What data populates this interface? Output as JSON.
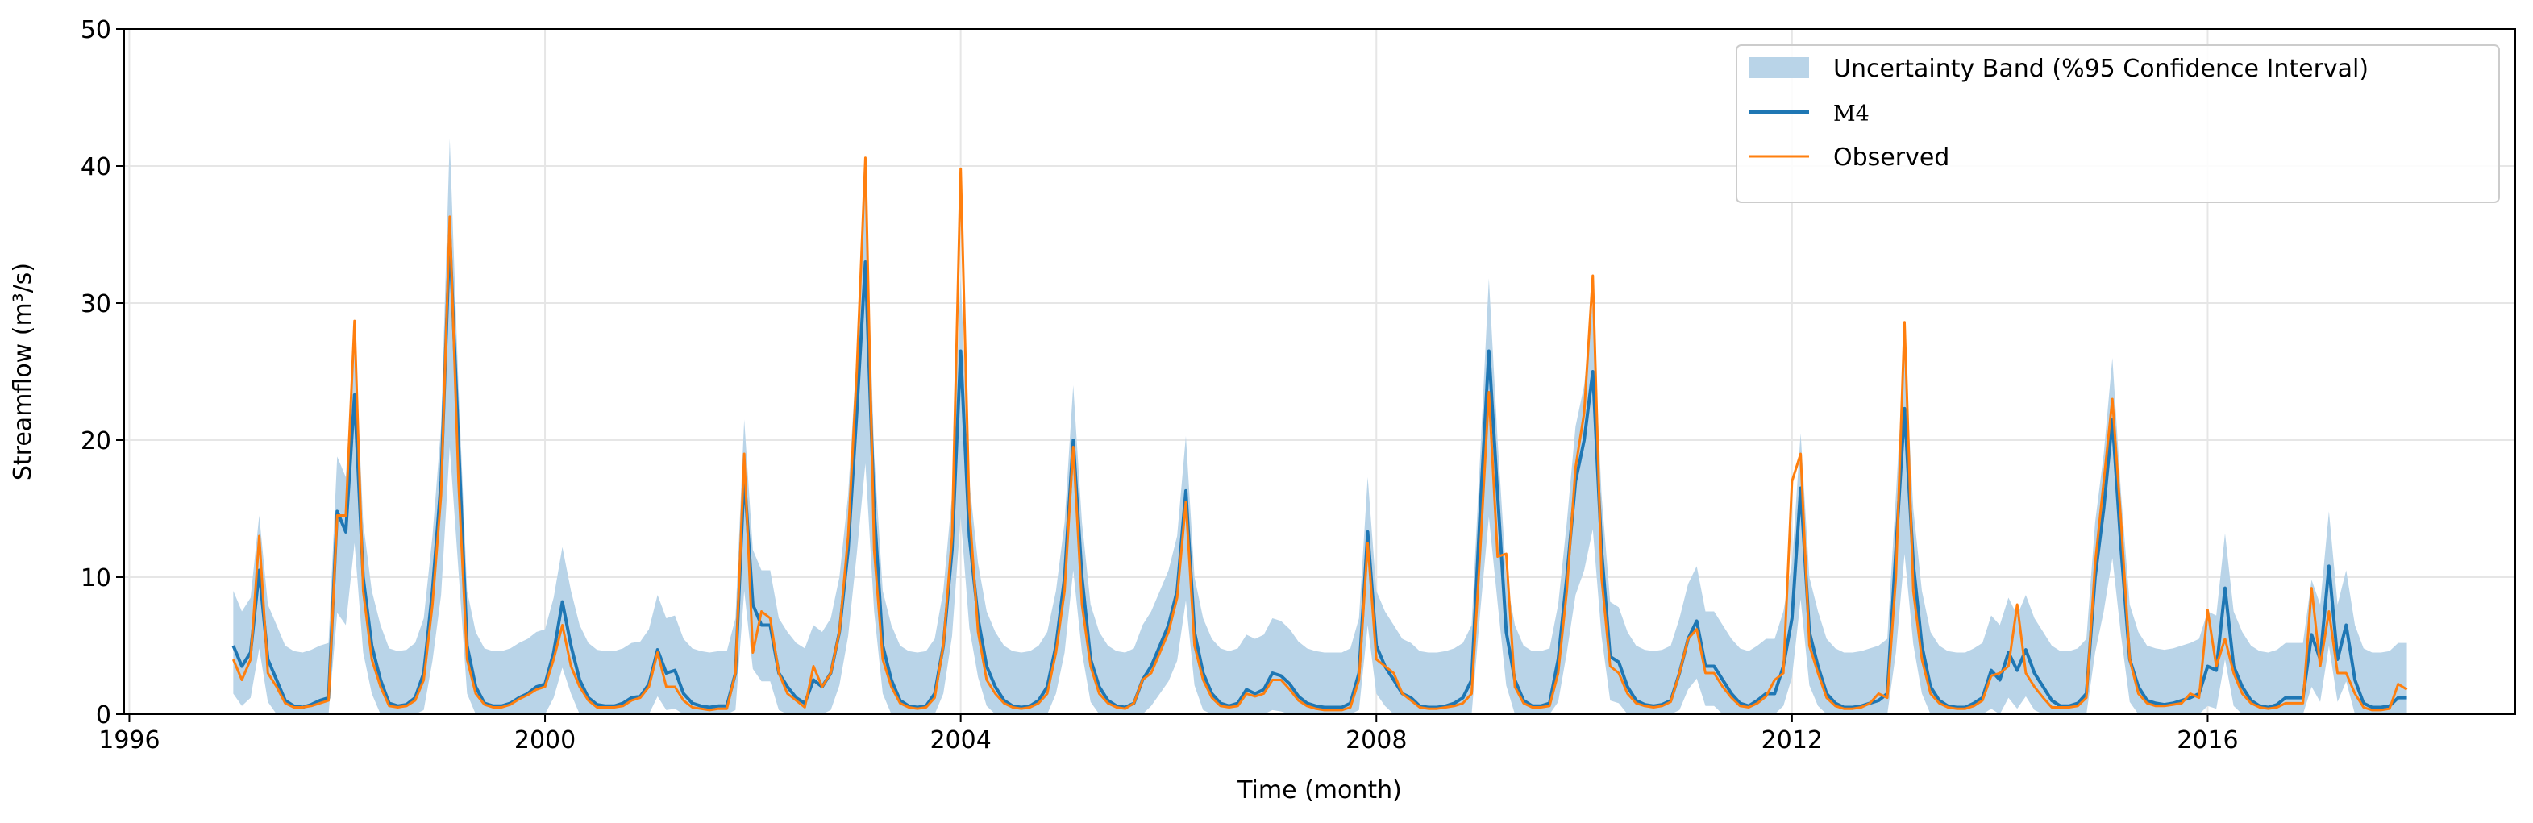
{
  "chart_data": {
    "type": "line",
    "xlabel": "Time (month)",
    "ylabel": "Streamflow (m³/s)",
    "xlim": [
      1995.95,
      2018.96
    ],
    "xticks": [
      1996,
      2000,
      2004,
      2008,
      2012,
      2016
    ],
    "ylim": [
      0,
      50
    ],
    "yticks": [
      0,
      10,
      20,
      30,
      40,
      50
    ],
    "grid": true,
    "legend": "upper right",
    "x": [
      1997,
      1997.083,
      1997.167,
      1997.25,
      1997.333,
      1997.417,
      1997.5,
      1997.583,
      1997.667,
      1997.75,
      1997.833,
      1997.917,
      1998,
      1998.083,
      1998.167,
      1998.25,
      1998.333,
      1998.417,
      1998.5,
      1998.583,
      1998.667,
      1998.75,
      1998.833,
      1998.917,
      1999,
      1999.083,
      1999.167,
      1999.25,
      1999.333,
      1999.417,
      1999.5,
      1999.583,
      1999.667,
      1999.75,
      1999.833,
      1999.917,
      2000,
      2000.083,
      2000.167,
      2000.25,
      2000.333,
      2000.417,
      2000.5,
      2000.583,
      2000.667,
      2000.75,
      2000.833,
      2000.917,
      2001,
      2001.083,
      2001.167,
      2001.25,
      2001.333,
      2001.417,
      2001.5,
      2001.583,
      2001.667,
      2001.75,
      2001.833,
      2001.917,
      2002,
      2002.083,
      2002.167,
      2002.25,
      2002.333,
      2002.417,
      2002.5,
      2002.583,
      2002.667,
      2002.75,
      2002.833,
      2002.917,
      2003,
      2003.083,
      2003.167,
      2003.25,
      2003.333,
      2003.417,
      2003.5,
      2003.583,
      2003.667,
      2003.75,
      2003.833,
      2003.917,
      2004,
      2004.083,
      2004.167,
      2004.25,
      2004.333,
      2004.417,
      2004.5,
      2004.583,
      2004.667,
      2004.75,
      2004.833,
      2004.917,
      2005,
      2005.083,
      2005.167,
      2005.25,
      2005.333,
      2005.417,
      2005.5,
      2005.583,
      2005.667,
      2005.75,
      2005.833,
      2005.917,
      2006,
      2006.083,
      2006.167,
      2006.25,
      2006.333,
      2006.417,
      2006.5,
      2006.583,
      2006.667,
      2006.75,
      2006.833,
      2006.917,
      2007,
      2007.083,
      2007.167,
      2007.25,
      2007.333,
      2007.417,
      2007.5,
      2007.583,
      2007.667,
      2007.75,
      2007.833,
      2007.917,
      2008,
      2008.083,
      2008.167,
      2008.25,
      2008.333,
      2008.417,
      2008.5,
      2008.583,
      2008.667,
      2008.75,
      2008.833,
      2008.917,
      2009,
      2009.083,
      2009.167,
      2009.25,
      2009.333,
      2009.417,
      2009.5,
      2009.583,
      2009.667,
      2009.75,
      2009.833,
      2009.917,
      2010,
      2010.083,
      2010.167,
      2010.25,
      2010.333,
      2010.417,
      2010.5,
      2010.583,
      2010.667,
      2010.75,
      2010.833,
      2010.917,
      2011,
      2011.083,
      2011.167,
      2011.25,
      2011.333,
      2011.417,
      2011.5,
      2011.583,
      2011.667,
      2011.75,
      2011.833,
      2011.917,
      2012,
      2012.083,
      2012.167,
      2012.25,
      2012.333,
      2012.417,
      2012.5,
      2012.583,
      2012.667,
      2012.75,
      2012.833,
      2012.917,
      2013,
      2013.083,
      2013.167,
      2013.25,
      2013.333,
      2013.417,
      2013.5,
      2013.583,
      2013.667,
      2013.75,
      2013.833,
      2013.917,
      2014,
      2014.083,
      2014.167,
      2014.25,
      2014.333,
      2014.417,
      2014.5,
      2014.583,
      2014.667,
      2014.75,
      2014.833,
      2014.917,
      2015,
      2015.083,
      2015.167,
      2015.25,
      2015.333,
      2015.417,
      2015.5,
      2015.583,
      2015.667,
      2015.75,
      2015.833,
      2015.917,
      2016,
      2016.083,
      2016.167,
      2016.25,
      2016.333,
      2016.417,
      2016.5,
      2016.583,
      2016.667,
      2016.75,
      2016.833,
      2016.917,
      2017,
      2017.083,
      2017.167,
      2017.25,
      2017.333,
      2017.417,
      2017.5,
      2017.583,
      2017.667,
      2017.75,
      2017.833,
      2017.917
    ],
    "series": [
      {
        "name": "Uncertainty Band (%95 Confidence Interval)",
        "color": "#b9d4e8",
        "upper": [
          9,
          7.5,
          8.5,
          14.5,
          8,
          6.5,
          5,
          4.6,
          4.5,
          4.7,
          5,
          5.2,
          18.8,
          17.3,
          28,
          14,
          9,
          6.5,
          4.8,
          4.6,
          4.7,
          5.2,
          7,
          13,
          21,
          42,
          24,
          9,
          6,
          4.8,
          4.6,
          4.6,
          4.8,
          5.2,
          5.5,
          6,
          6.2,
          8.5,
          12.2,
          9,
          6.5,
          5.2,
          4.7,
          4.6,
          4.6,
          4.8,
          5.2,
          5.3,
          6.2,
          8.7,
          7,
          7.2,
          5.5,
          4.8,
          4.6,
          4.5,
          4.6,
          4.6,
          7,
          21.5,
          12,
          10.5,
          10.5,
          7,
          6,
          5.2,
          4.8,
          6.5,
          6,
          7,
          10,
          16,
          26.4,
          39.6,
          19,
          9,
          6.5,
          5,
          4.6,
          4.5,
          4.6,
          5.5,
          9,
          16,
          31.8,
          17,
          11,
          7.5,
          6,
          5,
          4.6,
          4.5,
          4.6,
          5,
          6,
          9,
          14,
          24,
          14,
          8,
          6,
          5,
          4.6,
          4.5,
          4.8,
          6.5,
          7.5,
          9,
          10.5,
          13,
          20.3,
          10,
          7,
          5.5,
          4.8,
          4.6,
          4.8,
          5.8,
          5.5,
          5.8,
          7,
          6.8,
          6.2,
          5.3,
          4.8,
          4.6,
          4.5,
          4.5,
          4.5,
          4.8,
          7,
          17.3,
          9,
          7.5,
          6.5,
          5.5,
          5.2,
          4.6,
          4.5,
          4.5,
          4.6,
          4.8,
          5.2,
          6.5,
          19,
          31.8,
          20,
          10,
          6.5,
          5,
          4.6,
          4.6,
          4.8,
          8,
          14,
          21,
          24,
          30,
          16,
          8.2,
          7.8,
          6,
          5,
          4.7,
          4.6,
          4.7,
          5,
          7,
          9.5,
          10.8,
          7.5,
          7.5,
          6.5,
          5.5,
          4.8,
          4.6,
          5,
          5.5,
          5.5,
          7.5,
          11,
          20.5,
          10,
          7.5,
          5.5,
          4.8,
          4.5,
          4.5,
          4.6,
          4.8,
          5,
          5.5,
          16,
          27,
          15,
          9,
          6,
          5,
          4.6,
          4.5,
          4.5,
          4.8,
          5.2,
          7.2,
          6.5,
          8.5,
          7.2,
          8.7,
          7,
          6,
          5,
          4.6,
          4.6,
          4.8,
          5.5,
          14,
          19,
          26,
          16,
          8,
          6,
          5,
          4.8,
          4.7,
          4.8,
          5,
          5.2,
          5.5,
          7.5,
          7.2,
          13.2,
          7.5,
          6,
          5,
          4.6,
          4.5,
          4.7,
          5.2,
          5.2,
          5.2,
          9.8,
          8,
          14.8,
          8,
          10.5,
          6.5,
          4.8,
          4.5,
          4.5,
          4.6,
          5.2,
          5.2
        ],
        "lower": [
          1.5,
          0.6,
          1.2,
          4.8,
          0.9,
          0,
          0,
          0,
          0,
          0,
          0,
          0,
          7.4,
          6.5,
          12.5,
          4.5,
          1.5,
          0,
          0,
          0,
          0,
          0,
          0.3,
          3.9,
          8.7,
          19.5,
          10.5,
          1.5,
          0,
          0,
          0,
          0,
          0,
          0,
          0,
          0,
          0,
          1.2,
          3.4,
          1.5,
          0,
          0,
          0,
          0,
          0,
          0,
          0,
          0,
          0,
          1.3,
          0.3,
          0.4,
          0,
          0,
          0,
          0,
          0,
          0,
          0.3,
          9,
          3.3,
          2.4,
          2.4,
          0.3,
          0,
          0,
          0,
          0,
          0,
          0.3,
          2.1,
          5.7,
          11.7,
          18.3,
          7.5,
          1.5,
          0,
          0,
          0,
          0,
          0,
          0,
          1.5,
          5.7,
          14.4,
          6.3,
          2.7,
          0.6,
          0,
          0,
          0,
          0,
          0,
          0,
          0,
          1.5,
          4.5,
          10.5,
          4.5,
          0.9,
          0,
          0,
          0,
          0,
          0,
          0,
          0.6,
          1.5,
          2.4,
          3.9,
          8.3,
          2.1,
          0.3,
          0,
          0,
          0,
          0,
          0,
          0,
          0,
          0.3,
          0.2,
          0,
          0,
          0,
          0,
          0,
          0,
          0,
          0,
          0.3,
          6.5,
          1.5,
          0.6,
          0,
          0,
          0,
          0,
          0,
          0,
          0,
          0,
          0,
          0,
          7.5,
          14.4,
          8.1,
          2.1,
          0,
          0,
          0,
          0,
          0,
          0.9,
          4.5,
          8.7,
          10.5,
          13.5,
          5.7,
          1,
          0.8,
          0,
          0,
          0,
          0,
          0,
          0,
          0.3,
          1.8,
          2.6,
          0.6,
          0.6,
          0,
          0,
          0,
          0,
          0,
          0,
          0,
          0.6,
          2.7,
          8.4,
          2.1,
          0.6,
          0,
          0,
          0,
          0,
          0,
          0,
          0,
          0,
          4.5,
          11.7,
          5.1,
          1.5,
          0,
          0,
          0,
          0,
          0,
          0,
          0,
          0.4,
          0,
          1.2,
          0.4,
          1.3,
          0.3,
          0,
          0,
          0,
          0,
          0,
          0,
          4.5,
          7.5,
          11.4,
          5.7,
          0.9,
          0,
          0,
          0,
          0,
          0,
          0,
          0,
          0,
          0.6,
          0.4,
          4,
          0.6,
          0,
          0,
          0,
          0,
          0,
          0,
          0,
          0,
          2,
          0.9,
          5,
          0.9,
          2.4,
          0,
          0,
          0,
          0,
          0,
          0,
          0
        ]
      },
      {
        "name": "M4",
        "color": "#1f77b4",
        "values": [
          5,
          3.5,
          4.5,
          10.5,
          4,
          2.5,
          1,
          0.6,
          0.5,
          0.7,
          1,
          1.2,
          14.8,
          13.3,
          23.3,
          10,
          5,
          2.5,
          0.8,
          0.6,
          0.7,
          1.2,
          3,
          9,
          17,
          35,
          20,
          5,
          2,
          0.8,
          0.6,
          0.6,
          0.8,
          1.2,
          1.5,
          2,
          2.2,
          4.5,
          8.2,
          5,
          2.5,
          1.2,
          0.7,
          0.6,
          0.6,
          0.8,
          1.2,
          1.3,
          2.2,
          4.7,
          3,
          3.2,
          1.5,
          0.8,
          0.6,
          0.5,
          0.6,
          0.6,
          3,
          17.5,
          8,
          6.5,
          6.5,
          3,
          2,
          1.2,
          0.8,
          2.5,
          2,
          3,
          6,
          12,
          22,
          33,
          15,
          5,
          2.5,
          1,
          0.6,
          0.5,
          0.6,
          1.5,
          5,
          12,
          26.5,
          13,
          7,
          3.5,
          2,
          1,
          0.6,
          0.5,
          0.6,
          1,
          2,
          5,
          10,
          20,
          10,
          4,
          2,
          1,
          0.6,
          0.5,
          0.8,
          2.5,
          3.5,
          5,
          6.5,
          9,
          16.3,
          6,
          3,
          1.5,
          0.8,
          0.6,
          0.8,
          1.8,
          1.5,
          1.8,
          3,
          2.8,
          2.2,
          1.3,
          0.8,
          0.6,
          0.5,
          0.5,
          0.5,
          0.8,
          3,
          13.3,
          5,
          3.5,
          2.5,
          1.5,
          1.2,
          0.6,
          0.5,
          0.5,
          0.6,
          0.8,
          1.2,
          2.5,
          15,
          26.5,
          16,
          6,
          2.5,
          1,
          0.6,
          0.6,
          0.8,
          4,
          10,
          17,
          20,
          25,
          12,
          4.2,
          3.8,
          2,
          1,
          0.7,
          0.6,
          0.7,
          1,
          3,
          5.5,
          6.8,
          3.5,
          3.5,
          2.5,
          1.5,
          0.8,
          0.6,
          1,
          1.5,
          1.5,
          3.5,
          7,
          16.5,
          6,
          3.5,
          1.5,
          0.8,
          0.5,
          0.5,
          0.6,
          0.8,
          1,
          1.5,
          12,
          22.3,
          11,
          5,
          2,
          1,
          0.6,
          0.5,
          0.5,
          0.8,
          1.2,
          3.2,
          2.5,
          4.5,
          3.2,
          4.7,
          3,
          2,
          1,
          0.6,
          0.6,
          0.8,
          1.5,
          10,
          15,
          21.5,
          12,
          4,
          2,
          1,
          0.8,
          0.7,
          0.8,
          1,
          1.2,
          1.5,
          3.5,
          3.2,
          9.2,
          3.5,
          2,
          1,
          0.6,
          0.5,
          0.7,
          1.2,
          1.2,
          1.2,
          5.8,
          4,
          10.8,
          4,
          6.5,
          2.5,
          0.8,
          0.5,
          0.5,
          0.6,
          1.2,
          1.2
        ]
      },
      {
        "name": "Observed",
        "color": "#ff7f0e",
        "values": [
          4,
          2.5,
          4,
          13,
          3,
          2,
          0.8,
          0.5,
          0.5,
          0.6,
          0.8,
          1,
          14.5,
          14.5,
          28.7,
          9,
          4,
          2,
          0.6,
          0.5,
          0.6,
          1,
          2.5,
          8,
          16,
          36.3,
          17,
          4,
          1.5,
          0.7,
          0.5,
          0.5,
          0.7,
          1.1,
          1.4,
          1.8,
          2,
          4,
          6.5,
          3.5,
          2,
          1,
          0.5,
          0.5,
          0.5,
          0.6,
          1,
          1.2,
          2,
          4.5,
          2,
          2,
          1,
          0.5,
          0.4,
          0.3,
          0.4,
          0.4,
          3,
          19,
          4.5,
          7.5,
          7,
          3,
          1.5,
          1,
          0.5,
          3.5,
          2,
          3,
          6,
          13,
          25,
          40.6,
          12,
          4,
          2,
          0.8,
          0.5,
          0.4,
          0.5,
          1.2,
          5,
          13,
          39.8,
          15,
          6,
          2.5,
          1.5,
          0.8,
          0.5,
          0.4,
          0.5,
          0.8,
          1.5,
          4.5,
          9,
          19.5,
          8,
          3.5,
          1.5,
          0.8,
          0.5,
          0.4,
          0.8,
          2.5,
          3,
          4.5,
          6,
          8.5,
          15.5,
          5,
          2.5,
          1.2,
          0.6,
          0.5,
          0.6,
          1.5,
          1.3,
          1.5,
          2.5,
          2.5,
          1.8,
          1,
          0.6,
          0.4,
          0.3,
          0.3,
          0.3,
          0.5,
          2.5,
          12.5,
          4,
          3.5,
          3,
          1.5,
          1,
          0.5,
          0.4,
          0.4,
          0.5,
          0.6,
          0.8,
          1.5,
          12,
          23.5,
          11.5,
          11.7,
          2,
          0.8,
          0.5,
          0.5,
          0.6,
          3,
          9,
          18,
          22,
          32,
          10,
          3.5,
          3,
          1.5,
          0.8,
          0.6,
          0.5,
          0.6,
          0.9,
          3,
          5.5,
          6.2,
          3,
          3,
          2,
          1.2,
          0.6,
          0.5,
          0.8,
          1.3,
          2.5,
          3,
          17,
          19,
          5,
          3,
          1.2,
          0.6,
          0.4,
          0.4,
          0.5,
          0.8,
          1.5,
          1.2,
          10,
          28.6,
          9,
          4,
          1.5,
          0.8,
          0.5,
          0.4,
          0.4,
          0.6,
          1,
          2.8,
          3,
          3.5,
          8,
          3,
          2,
          1.2,
          0.5,
          0.5,
          0.5,
          0.6,
          1.2,
          11,
          17,
          23,
          14,
          4,
          1.5,
          0.8,
          0.6,
          0.6,
          0.7,
          0.8,
          1.5,
          1.2,
          7.6,
          3.5,
          5.5,
          3,
          1.5,
          0.8,
          0.5,
          0.4,
          0.5,
          0.8,
          0.8,
          0.8,
          9.2,
          3.5,
          7.5,
          3,
          3,
          1.5,
          0.5,
          0.3,
          0.3,
          0.4,
          2.2,
          1.8
        ]
      }
    ]
  }
}
